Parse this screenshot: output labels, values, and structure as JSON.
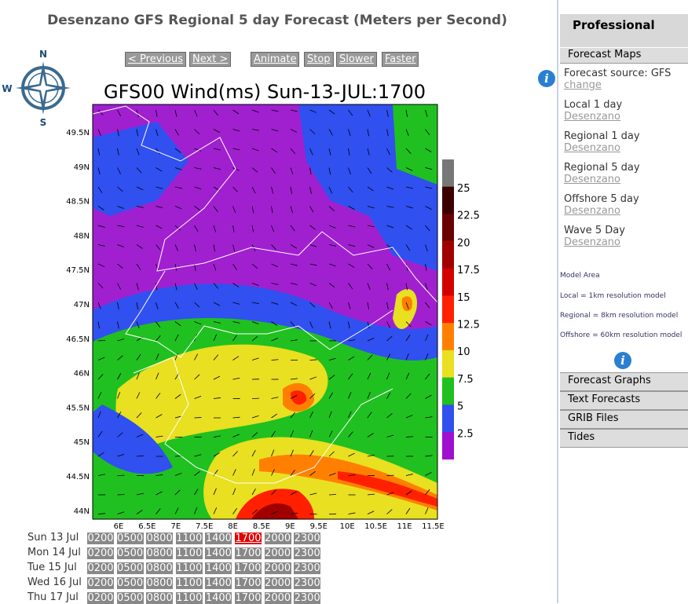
{
  "header": {
    "title": "Desenzano GFS Regional 5 day Forecast (Meters per Second)"
  },
  "compass": {
    "n": "N",
    "w": "W",
    "s": "S"
  },
  "controls": [
    "< Previous",
    "Next >",
    "Animate",
    "Stop",
    "Slower",
    "Faster"
  ],
  "map": {
    "title": "GFS00 Wind(ms) Sun-13-JUL:1700",
    "lat_labels": [
      "49.5N",
      "49N",
      "48.5N",
      "48N",
      "47.5N",
      "47N",
      "46.5N",
      "46N",
      "45.5N",
      "45N",
      "44.5N",
      "44N"
    ],
    "lon_labels": [
      "6E",
      "6.5E",
      "7E",
      "7.5E",
      "8E",
      "8.5E",
      "9E",
      "9.5E",
      "10E",
      "10.5E",
      "11E",
      "11.5E"
    ],
    "legend_labels": [
      "25",
      "22.5",
      "20",
      "17.5",
      "15",
      "12.5",
      "10",
      "7.5",
      "5",
      "2.5"
    ]
  },
  "schedule": {
    "days": [
      "Sun 13 Jul",
      "Mon 14 Jul",
      "Tue 15 Jul",
      "Wed 16 Jul",
      "Thu 17 Jul"
    ],
    "times": [
      "0200",
      "0500",
      "0800",
      "1100",
      "1400",
      "1700",
      "2000",
      "2300"
    ]
  },
  "sidebar": {
    "heading": "Professional",
    "menu_top": "Forecast Maps",
    "source": "Forecast source: GFS",
    "source_link": "change",
    "links": [
      {
        "label": "Local 1 day",
        "place": "Desenzano"
      },
      {
        "label": "Regional 1 day",
        "place": "Desenzano"
      },
      {
        "label": "Regional 5 day",
        "place": "Desenzano"
      },
      {
        "label": "Offshore 5 day",
        "place": "Desenzano"
      },
      {
        "label": "Wave 5 Day",
        "place": "Desenzano"
      }
    ],
    "model_area": "Model Area",
    "notes": [
      "Local = 1km resolution model",
      "Regional = 8km resolution model",
      "Offshore = 60km resolution model"
    ],
    "menu": [
      "Forecast Graphs",
      "Text Forecasts",
      "GRIB Files",
      "Tides"
    ]
  }
}
